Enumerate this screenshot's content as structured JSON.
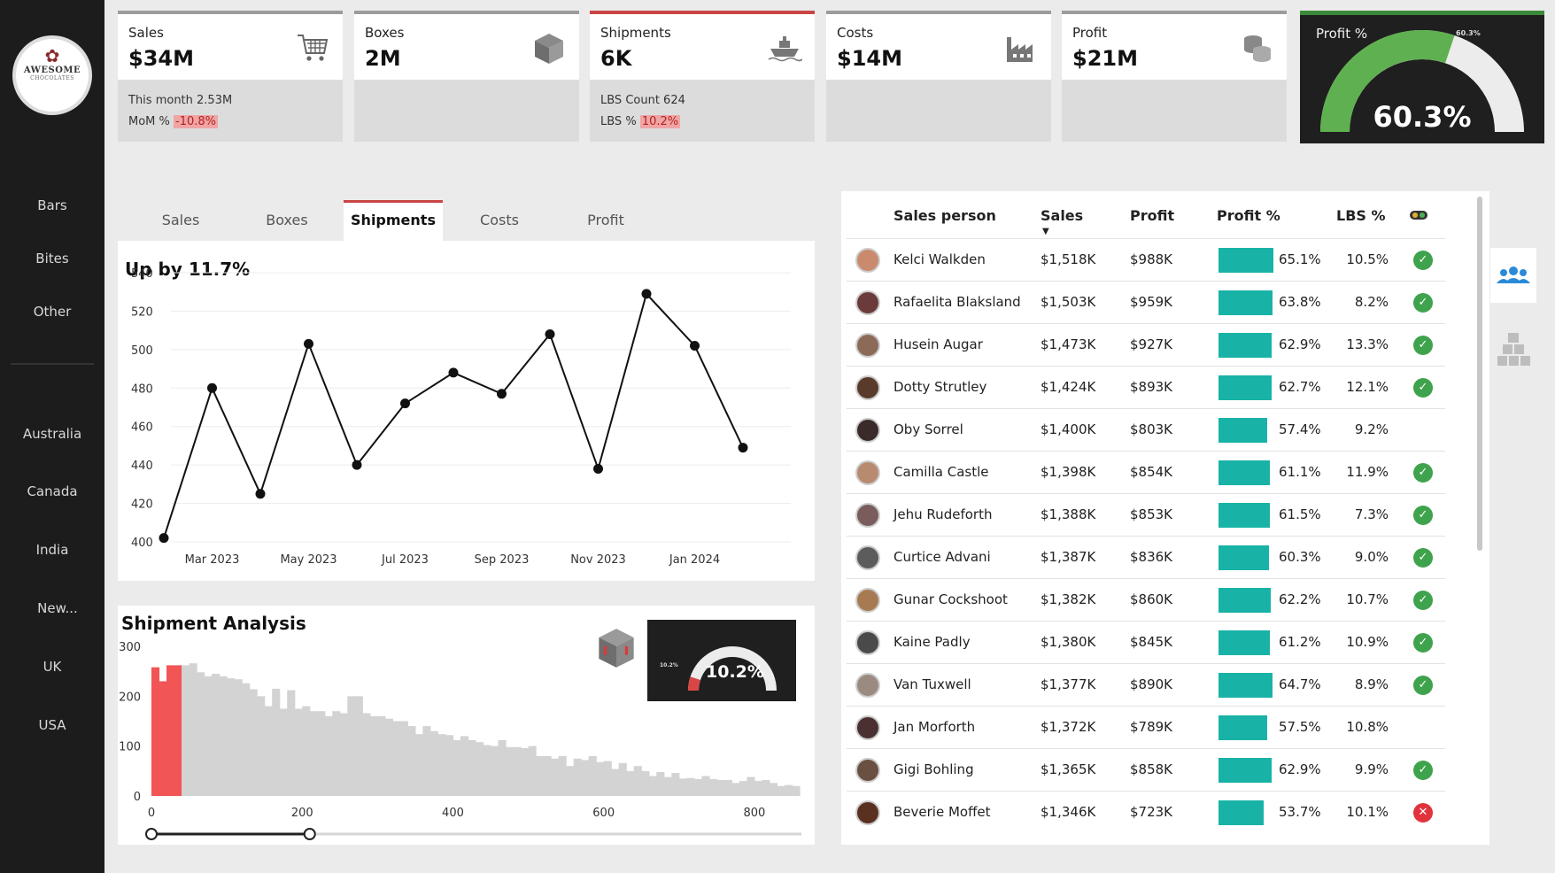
{
  "sidebar": {
    "logo_line1": "AWESOME",
    "logo_line2": "CHOCOLATES",
    "categories": [
      "Bars",
      "Bites",
      "Other"
    ],
    "countries": [
      "Australia",
      "Canada",
      "India",
      "New...",
      "UK",
      "USA"
    ]
  },
  "kpis": {
    "sales": {
      "label": "Sales",
      "value": "$34M",
      "line1": "This month 2.53M",
      "line2_label": "MoM %",
      "line2_value": "-10.8%"
    },
    "boxes": {
      "label": "Boxes",
      "value": "2M"
    },
    "shipments": {
      "label": "Shipments",
      "value": "6K",
      "line1": "LBS Count 624",
      "line2_label": "LBS %",
      "line2_value": "10.2%"
    },
    "costs": {
      "label": "Costs",
      "value": "$14M"
    },
    "profit": {
      "label": "Profit",
      "value": "$21M"
    },
    "profit_pct": {
      "label": "Profit %",
      "value": "60.3%",
      "small": "60.3%",
      "fraction": 0.603
    }
  },
  "tabs": [
    "Sales",
    "Boxes",
    "Shipments",
    "Costs",
    "Profit"
  ],
  "active_tab": "Shipments",
  "line_chart": {
    "title": "Up by 11.7%",
    "chart_data": {
      "type": "line",
      "x": [
        "2023-02",
        "2023-03",
        "2023-04",
        "2023-05",
        "2023-06",
        "2023-07",
        "2023-08",
        "2023-09",
        "2023-10",
        "2023-11",
        "2023-12",
        "2024-01",
        "2024-02"
      ],
      "values": [
        402,
        480,
        425,
        503,
        440,
        472,
        488,
        477,
        508,
        438,
        529,
        502,
        449
      ],
      "x_ticks": [
        "Mar 2023",
        "May 2023",
        "Jul 2023",
        "Sep 2023",
        "Nov 2023",
        "Jan 2024"
      ],
      "y_ticks": [
        "400",
        "420",
        "440",
        "460",
        "480",
        "500",
        "520",
        "540"
      ],
      "ylim": [
        400,
        540
      ],
      "grid": true
    }
  },
  "shipment_analysis": {
    "title": "Shipment Analysis",
    "gauge_value": "10.2%",
    "gauge_small": "10.2%",
    "gauge_fraction": 0.102,
    "chart_data": {
      "type": "bar",
      "bin_width": 10,
      "x_start": 0,
      "values": [
        258,
        230,
        262,
        262,
        262,
        266,
        248,
        240,
        245,
        240,
        236,
        234,
        226,
        214,
        200,
        180,
        215,
        175,
        212,
        175,
        180,
        170,
        170,
        160,
        170,
        166,
        200,
        200,
        166,
        160,
        160,
        155,
        150,
        150,
        140,
        124,
        140,
        130,
        124,
        122,
        112,
        120,
        112,
        108,
        102,
        100,
        112,
        98,
        98,
        96,
        100,
        80,
        80,
        75,
        80,
        60,
        75,
        72,
        80,
        68,
        70,
        54,
        66,
        50,
        60,
        50,
        40,
        48,
        38,
        46,
        35,
        36,
        34,
        40,
        34,
        32,
        32,
        26,
        30,
        38,
        30,
        32,
        26,
        20,
        22,
        20
      ],
      "highlight_bins": 4,
      "x_ticks": [
        "0",
        "200",
        "400",
        "600",
        "800"
      ],
      "y_ticks": [
        "0",
        "100",
        "200",
        "300"
      ],
      "ylim": [
        0,
        300
      ],
      "slider_range": [
        0,
        210
      ]
    }
  },
  "table": {
    "headers": {
      "person": "Sales person",
      "sales": "Sales",
      "profit": "Profit",
      "profit_pct": "Profit %",
      "lbs_pct": "LBS %"
    },
    "rows": [
      {
        "name": "Kelci Walkden",
        "sales": "$1,518K",
        "profit": "$988K",
        "pct": "65.1%",
        "pct_v": 65.1,
        "lbs": "10.5%",
        "status": "ok",
        "color": "#c98a6e"
      },
      {
        "name": "Rafaelita Blaksland",
        "sales": "$1,503K",
        "profit": "$959K",
        "pct": "63.8%",
        "pct_v": 63.8,
        "lbs": "8.2%",
        "status": "ok",
        "color": "#6b3b3b"
      },
      {
        "name": "Husein Augar",
        "sales": "$1,473K",
        "profit": "$927K",
        "pct": "62.9%",
        "pct_v": 62.9,
        "lbs": "13.3%",
        "status": "ok",
        "color": "#8c6a58"
      },
      {
        "name": "Dotty Strutley",
        "sales": "$1,424K",
        "profit": "$893K",
        "pct": "62.7%",
        "pct_v": 62.7,
        "lbs": "12.1%",
        "status": "ok",
        "color": "#5a3a2a"
      },
      {
        "name": "Oby Sorrel",
        "sales": "$1,400K",
        "profit": "$803K",
        "pct": "57.4%",
        "pct_v": 57.4,
        "lbs": "9.2%",
        "status": "none",
        "color": "#3a2a2a"
      },
      {
        "name": "Camilla Castle",
        "sales": "$1,398K",
        "profit": "$854K",
        "pct": "61.1%",
        "pct_v": 61.1,
        "lbs": "11.9%",
        "status": "ok",
        "color": "#b88a70"
      },
      {
        "name": "Jehu Rudeforth",
        "sales": "$1,388K",
        "profit": "$853K",
        "pct": "61.5%",
        "pct_v": 61.5,
        "lbs": "7.3%",
        "status": "ok",
        "color": "#7a5c5c"
      },
      {
        "name": "Curtice Advani",
        "sales": "$1,387K",
        "profit": "$836K",
        "pct": "60.3%",
        "pct_v": 60.3,
        "lbs": "9.0%",
        "status": "ok",
        "color": "#5c5c5c"
      },
      {
        "name": "Gunar Cockshoot",
        "sales": "$1,382K",
        "profit": "$860K",
        "pct": "62.2%",
        "pct_v": 62.2,
        "lbs": "10.7%",
        "status": "ok",
        "color": "#a87a52"
      },
      {
        "name": "Kaine Padly",
        "sales": "$1,380K",
        "profit": "$845K",
        "pct": "61.2%",
        "pct_v": 61.2,
        "lbs": "10.9%",
        "status": "ok",
        "color": "#4a4a4a"
      },
      {
        "name": "Van Tuxwell",
        "sales": "$1,377K",
        "profit": "$890K",
        "pct": "64.7%",
        "pct_v": 64.7,
        "lbs": "8.9%",
        "status": "ok",
        "color": "#9a8a80"
      },
      {
        "name": "Jan Morforth",
        "sales": "$1,372K",
        "profit": "$789K",
        "pct": "57.5%",
        "pct_v": 57.5,
        "lbs": "10.8%",
        "status": "none",
        "color": "#4a3030"
      },
      {
        "name": "Gigi Bohling",
        "sales": "$1,365K",
        "profit": "$858K",
        "pct": "62.9%",
        "pct_v": 62.9,
        "lbs": "9.9%",
        "status": "ok",
        "color": "#6a5040"
      },
      {
        "name": "Beverie Moffet",
        "sales": "$1,346K",
        "profit": "$723K",
        "pct": "53.7%",
        "pct_v": 53.7,
        "lbs": "10.1%",
        "status": "bad",
        "color": "#5a3020"
      }
    ]
  }
}
